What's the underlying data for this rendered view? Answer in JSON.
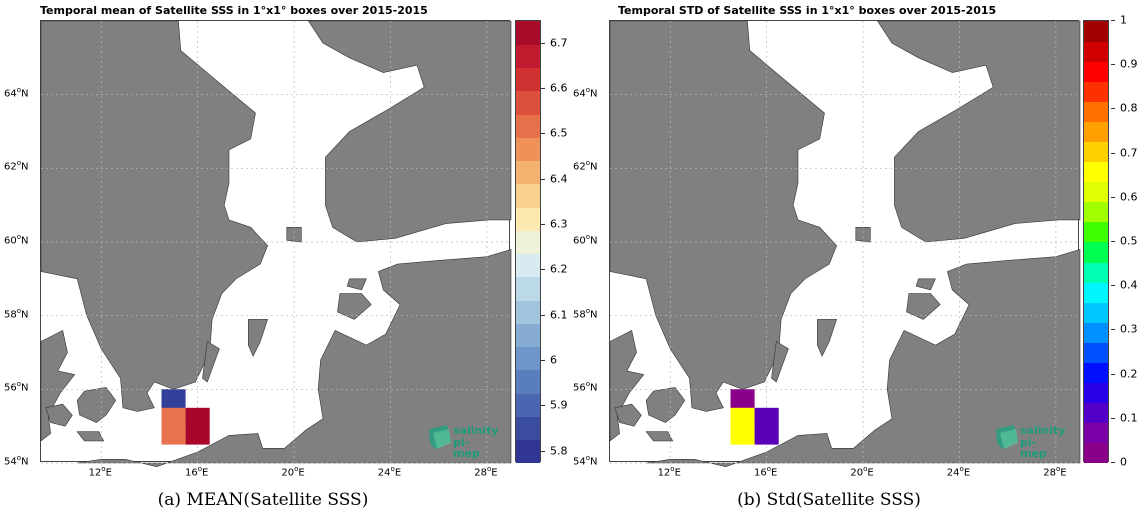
{
  "panel_a": {
    "title": "Temporal mean of Satellite SSS in 1°x1° boxes over 2015-2015",
    "caption": "(a) MEAN(Satellite SSS)",
    "colorbar": {
      "ticks": [
        "5.8",
        "5.9",
        "6",
        "6.1",
        "6.2",
        "6.3",
        "6.4",
        "6.5",
        "6.6",
        "6.7"
      ],
      "range": [
        5.775,
        6.75
      ],
      "colors": [
        "#313695",
        "#3b4ca0",
        "#4a66b0",
        "#5a7ebd",
        "#6f96c8",
        "#87acd3",
        "#a1c4df",
        "#bcd9ea",
        "#d8ebf0",
        "#eef2d6",
        "#fbe9b0",
        "#f8d18c",
        "#f4b26f",
        "#ee9259",
        "#e6704a",
        "#dc4f3d",
        "#cf3131",
        "#bf1a2d",
        "#a70b2a"
      ]
    },
    "boxes": [
      {
        "lon": 15,
        "lat": 55.5,
        "value": 5.8,
        "color": "#33409a"
      },
      {
        "lon": 15,
        "lat": 55,
        "value": 6.55,
        "color": "#e6724e"
      },
      {
        "lon": 16,
        "lat": 55,
        "value": 6.75,
        "color": "#a8062a"
      }
    ]
  },
  "panel_b": {
    "title": "Temporal STD of Satellite SSS in 1°x1° boxes over 2015-2015",
    "caption": "(b) Std(Satellite SSS)",
    "colorbar": {
      "ticks": [
        "0",
        "0.1",
        "0.2",
        "0.3",
        "0.4",
        "0.5",
        "0.6",
        "0.7",
        "0.8",
        "0.9",
        "1"
      ],
      "range": [
        0,
        1
      ],
      "colors": [
        "#8b008b",
        "#7a00a8",
        "#5200c8",
        "#2a00e6",
        "#0010ff",
        "#0050ff",
        "#0090ff",
        "#00c8ff",
        "#00f5ff",
        "#00ffb0",
        "#00ff50",
        "#40ff00",
        "#a0ff00",
        "#e0ff00",
        "#ffff00",
        "#ffd000",
        "#ffa000",
        "#ff7000",
        "#ff3000",
        "#ff0000",
        "#d00000",
        "#a00000"
      ]
    },
    "boxes": [
      {
        "lon": 15,
        "lat": 55.5,
        "value": 0.0,
        "color": "#8b008b"
      },
      {
        "lon": 15,
        "lat": 55,
        "value": 0.6,
        "color": "#ffff00"
      },
      {
        "lon": 16,
        "lat": 55,
        "value": 0.1,
        "color": "#5a00b8"
      }
    ]
  },
  "map": {
    "lon_range": [
      9.5,
      29
    ],
    "lat_range": [
      54,
      66
    ],
    "lat_ticks": [
      "54°N",
      "56°N",
      "58°N",
      "60°N",
      "62°N",
      "64°N"
    ],
    "lon_ticks": [
      "12°E",
      "16°E",
      "20°E",
      "24°E",
      "28°E"
    ],
    "lat_values": [
      54,
      56,
      58,
      60,
      62,
      64
    ],
    "lon_values": [
      12,
      16,
      20,
      24,
      28
    ],
    "land_color": "#808080",
    "sea_color": "#ffffff",
    "grid": true
  },
  "logo": {
    "line1": "salinity",
    "line2": "pi-mep"
  }
}
